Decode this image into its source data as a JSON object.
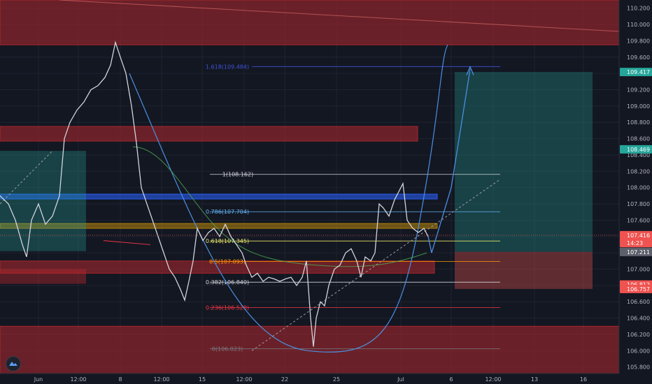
{
  "chart_data": {
    "type": "line",
    "symbol_hint": "USD/JPY style candlestick chart with annotations",
    "price_axis_ticks": [
      "110.200",
      "110.000",
      "109.800",
      "109.600",
      "109.400",
      "109.200",
      "109.000",
      "108.800",
      "108.600",
      "108.400",
      "108.200",
      "108.000",
      "107.800",
      "107.600",
      "107.400",
      "107.200",
      "107.000",
      "106.800",
      "106.600",
      "106.400",
      "106.200",
      "106.000",
      "105.800"
    ],
    "time_axis_ticks": [
      "Jun",
      "12:00",
      "8",
      "12:00",
      "15",
      "12:00",
      "22",
      "25",
      "Jul",
      "6",
      "12:00",
      "13",
      "16"
    ],
    "ylim": [
      105.72,
      110.3
    ],
    "fib_levels": [
      {
        "label": "1.618(109.484)",
        "value": 109.484,
        "color": "#3f51d9"
      },
      {
        "label": "1(108.162)",
        "value": 108.162,
        "color": "#d1d4dc"
      },
      {
        "label": "0.786(107.704)",
        "value": 107.704,
        "color": "#64b5f6"
      },
      {
        "label": "0.618(107.345)",
        "value": 107.345,
        "color": "#e7e36b"
      },
      {
        "label": "0.5(107.093)",
        "value": 107.093,
        "color": "#ff9800"
      },
      {
        "label": "0.382(106.840)",
        "value": 106.84,
        "color": "#d1d4dc"
      },
      {
        "label": "0.236(106.528)",
        "value": 106.528,
        "color": "#f23645"
      },
      {
        "label": "0(106.023)",
        "value": 106.023,
        "color": "#787b86"
      }
    ],
    "price_tags": [
      {
        "text": "109.417",
        "value": 109.417,
        "bg": "#26a69a"
      },
      {
        "text": "108.469",
        "value": 108.469,
        "bg": "#26a69a"
      },
      {
        "text": "107.416",
        "value": 107.416,
        "bg": "#ef5350"
      },
      {
        "text": "14:23",
        "value": 107.32,
        "bg": "#ef5350"
      },
      {
        "text": "107.212",
        "value": 107.212,
        "bg": "#5d606b"
      },
      {
        "text": "107.211",
        "value": 107.211,
        "bg": "#5d606b"
      },
      {
        "text": "106.812",
        "value": 106.812,
        "bg": "#ef5350"
      },
      {
        "text": "106.757",
        "value": 106.757,
        "bg": "#ef5350"
      }
    ],
    "zones": [
      {
        "name": "supply-top",
        "y_top": 110.3,
        "y_bottom": 109.75,
        "color": "#b2282d"
      },
      {
        "name": "supply-mid",
        "y_top": 108.75,
        "y_bottom": 108.57,
        "color": "#b2282d"
      },
      {
        "name": "resistance-blue",
        "y_top": 107.92,
        "y_bottom": 107.86,
        "color": "#2962ff"
      },
      {
        "name": "pivot-yellow",
        "y_top": 107.56,
        "y_bottom": 107.5,
        "color": "#b8860b"
      },
      {
        "name": "demand-mid",
        "y_top": 107.1,
        "y_bottom": 106.95,
        "color": "#b2282d"
      },
      {
        "name": "demand-bottom",
        "y_top": 106.3,
        "y_bottom": 105.72,
        "color": "#b2282d"
      }
    ],
    "price_path": [
      [
        0,
        107.9
      ],
      [
        12,
        107.8
      ],
      [
        22,
        107.6
      ],
      [
        32,
        107.3
      ],
      [
        38,
        107.15
      ],
      [
        45,
        107.6
      ],
      [
        55,
        107.8
      ],
      [
        65,
        107.55
      ],
      [
        75,
        107.65
      ],
      [
        85,
        107.9
      ],
      [
        92,
        108.6
      ],
      [
        100,
        108.8
      ],
      [
        110,
        108.95
      ],
      [
        120,
        109.05
      ],
      [
        130,
        109.2
      ],
      [
        140,
        109.25
      ],
      [
        150,
        109.35
      ],
      [
        158,
        109.5
      ],
      [
        165,
        109.78
      ],
      [
        172,
        109.6
      ],
      [
        180,
        109.4
      ],
      [
        188,
        109.0
      ],
      [
        195,
        108.55
      ],
      [
        202,
        108.0
      ],
      [
        210,
        107.8
      ],
      [
        218,
        107.6
      ],
      [
        226,
        107.4
      ],
      [
        234,
        107.2
      ],
      [
        242,
        107.0
      ],
      [
        250,
        106.9
      ],
      [
        258,
        106.75
      ],
      [
        264,
        106.62
      ],
      [
        270,
        106.85
      ],
      [
        276,
        107.1
      ],
      [
        282,
        107.5
      ],
      [
        290,
        107.35
      ],
      [
        298,
        107.45
      ],
      [
        306,
        107.5
      ],
      [
        314,
        107.4
      ],
      [
        322,
        107.55
      ],
      [
        330,
        107.4
      ],
      [
        338,
        107.3
      ],
      [
        346,
        107.2
      ],
      [
        352,
        107.05
      ],
      [
        360,
        106.9
      ],
      [
        368,
        106.95
      ],
      [
        376,
        106.85
      ],
      [
        384,
        106.9
      ],
      [
        392,
        106.88
      ],
      [
        400,
        106.85
      ],
      [
        408,
        106.88
      ],
      [
        416,
        106.9
      ],
      [
        424,
        106.8
      ],
      [
        432,
        106.9
      ],
      [
        438,
        107.1
      ],
      [
        444,
        106.4
      ],
      [
        448,
        106.05
      ],
      [
        452,
        106.4
      ],
      [
        458,
        106.6
      ],
      [
        464,
        106.55
      ],
      [
        470,
        106.8
      ],
      [
        478,
        107.0
      ],
      [
        486,
        107.05
      ],
      [
        494,
        107.2
      ],
      [
        502,
        107.25
      ],
      [
        510,
        107.1
      ],
      [
        516,
        106.9
      ],
      [
        522,
        107.15
      ],
      [
        530,
        107.1
      ],
      [
        536,
        107.2
      ],
      [
        542,
        107.8
      ],
      [
        548,
        107.75
      ],
      [
        556,
        107.65
      ],
      [
        564,
        107.85
      ],
      [
        570,
        107.95
      ],
      [
        576,
        108.05
      ],
      [
        582,
        107.6
      ],
      [
        590,
        107.5
      ],
      [
        598,
        107.45
      ],
      [
        606,
        107.5
      ],
      [
        612,
        107.4
      ]
    ],
    "grid": true
  }
}
